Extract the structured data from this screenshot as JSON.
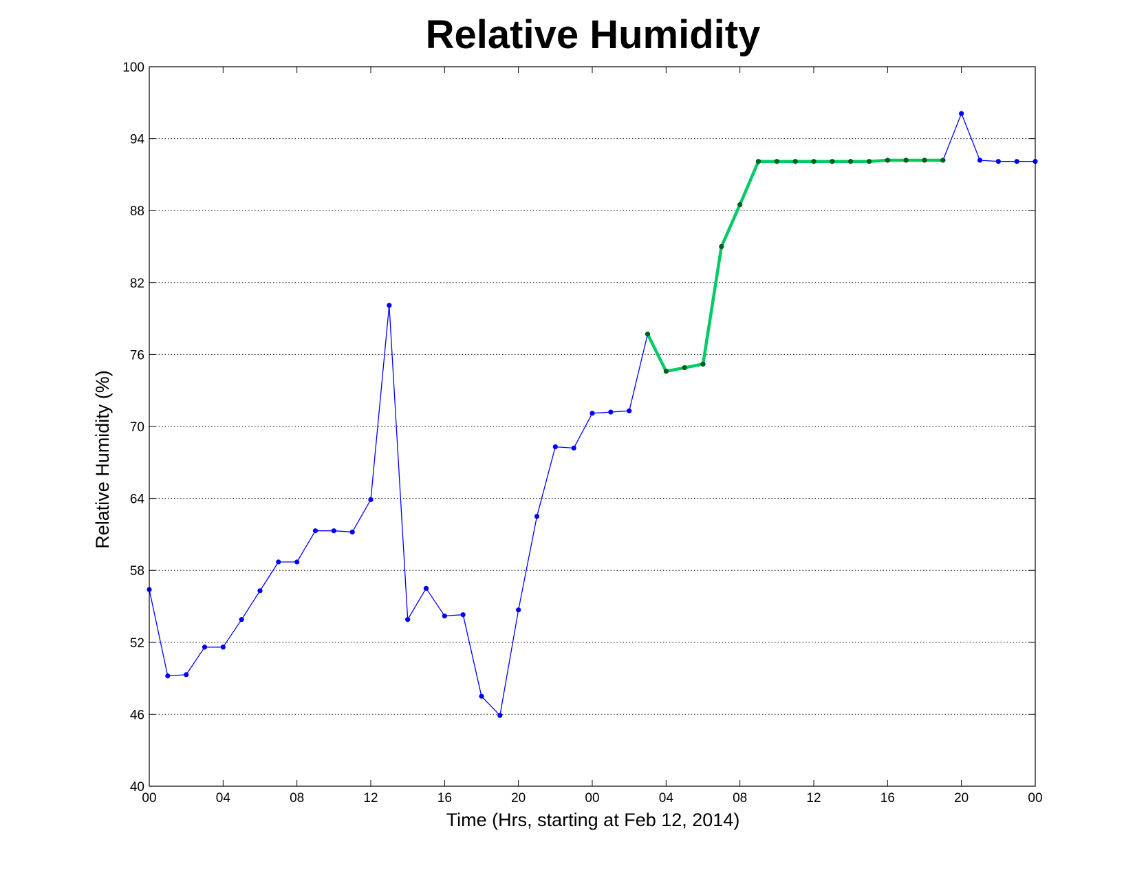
{
  "chart_data": {
    "type": "line",
    "title": "Relative Humidity",
    "xlabel": "Time (Hrs, starting at Feb 12, 2014)",
    "ylabel": "Relative Humidity (%)",
    "ylim": [
      40,
      100
    ],
    "xlim": [
      0,
      48
    ],
    "y_ticks": [
      40,
      46,
      52,
      58,
      64,
      70,
      76,
      82,
      88,
      94,
      100
    ],
    "x_ticks": [
      {
        "x": 0,
        "label": "00"
      },
      {
        "x": 4,
        "label": "04"
      },
      {
        "x": 8,
        "label": "08"
      },
      {
        "x": 12,
        "label": "12"
      },
      {
        "x": 16,
        "label": "16"
      },
      {
        "x": 20,
        "label": "20"
      },
      {
        "x": 24,
        "label": "00"
      },
      {
        "x": 28,
        "label": "04"
      },
      {
        "x": 32,
        "label": "08"
      },
      {
        "x": 36,
        "label": "12"
      },
      {
        "x": 40,
        "label": "16"
      },
      {
        "x": 44,
        "label": "20"
      },
      {
        "x": 48,
        "label": "00"
      }
    ],
    "grid": "y-dotted",
    "series": [
      {
        "color": "#0000ff",
        "marker_color": "#0000ff",
        "x": [
          0,
          1,
          2,
          3,
          4,
          5,
          6,
          7,
          8,
          9,
          10,
          11,
          12,
          13,
          14,
          15,
          16,
          17,
          18,
          19,
          20,
          21,
          22,
          23,
          24,
          25,
          26,
          27,
          28,
          29,
          30,
          31,
          32,
          33,
          34,
          35,
          36,
          37,
          38,
          39,
          40,
          41,
          42,
          43,
          44,
          45,
          46,
          47,
          48
        ],
        "y": [
          56.4,
          49.2,
          49.3,
          51.6,
          51.6,
          53.9,
          56.3,
          58.7,
          58.7,
          61.3,
          61.3,
          61.2,
          63.9,
          80.1,
          53.9,
          56.5,
          54.2,
          54.3,
          47.5,
          45.9,
          54.7,
          62.5,
          68.3,
          68.2,
          71.1,
          71.2,
          71.3,
          77.7,
          74.6,
          74.9,
          75.2,
          85.0,
          88.5,
          92.1,
          92.1,
          92.1,
          92.1,
          92.1,
          92.1,
          92.1,
          92.2,
          92.2,
          92.2,
          92.2,
          96.1,
          92.2,
          92.1,
          92.1,
          92.1
        ]
      },
      {
        "color": "#00cc66",
        "marker_color": "#006400",
        "x": [
          27,
          28,
          29,
          30,
          31,
          32,
          33,
          34,
          35,
          36,
          37,
          38,
          39,
          40,
          41,
          42,
          43
        ],
        "y": [
          77.7,
          74.6,
          74.9,
          75.2,
          85.0,
          88.5,
          92.1,
          92.1,
          92.1,
          92.1,
          92.1,
          92.1,
          92.1,
          92.2,
          92.2,
          92.2,
          92.2
        ]
      }
    ]
  }
}
